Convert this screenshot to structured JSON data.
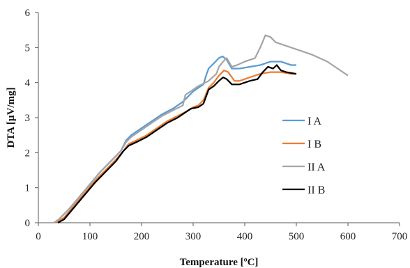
{
  "chart_data": {
    "type": "line",
    "title": "",
    "xlabel": "Temperature [ºC]",
    "ylabel": "DTA [µV/mg]",
    "xlim": [
      0,
      700
    ],
    "ylim": [
      0,
      6
    ],
    "xticks": [
      "0",
      "100",
      "200",
      "300",
      "400",
      "500",
      "600",
      "700"
    ],
    "yticks": [
      "0",
      "1",
      "2",
      "3",
      "4",
      "5",
      "6"
    ],
    "grid": false,
    "legend_position": "right-middle",
    "series": [
      {
        "name": "I A",
        "color": "#5b9bd5",
        "points": [
          [
            30,
            0
          ],
          [
            40,
            0.1
          ],
          [
            60,
            0.4
          ],
          [
            80,
            0.75
          ],
          [
            100,
            1.1
          ],
          [
            120,
            1.45
          ],
          [
            140,
            1.75
          ],
          [
            160,
            2.05
          ],
          [
            170,
            2.35
          ],
          [
            180,
            2.5
          ],
          [
            200,
            2.7
          ],
          [
            220,
            2.9
          ],
          [
            240,
            3.1
          ],
          [
            260,
            3.25
          ],
          [
            280,
            3.45
          ],
          [
            290,
            3.6
          ],
          [
            300,
            3.75
          ],
          [
            310,
            3.85
          ],
          [
            320,
            3.95
          ],
          [
            325,
            4.2
          ],
          [
            330,
            4.4
          ],
          [
            340,
            4.55
          ],
          [
            350,
            4.7
          ],
          [
            357,
            4.75
          ],
          [
            365,
            4.65
          ],
          [
            375,
            4.4
          ],
          [
            390,
            4.4
          ],
          [
            410,
            4.45
          ],
          [
            430,
            4.5
          ],
          [
            450,
            4.6
          ],
          [
            470,
            4.6
          ],
          [
            490,
            4.5
          ],
          [
            500,
            4.5
          ]
        ]
      },
      {
        "name": "I B",
        "color": "#ed7d31",
        "points": [
          [
            35,
            0
          ],
          [
            50,
            0.15
          ],
          [
            70,
            0.5
          ],
          [
            90,
            0.85
          ],
          [
            110,
            1.2
          ],
          [
            130,
            1.5
          ],
          [
            150,
            1.8
          ],
          [
            165,
            2.05
          ],
          [
            175,
            2.25
          ],
          [
            190,
            2.35
          ],
          [
            210,
            2.5
          ],
          [
            230,
            2.7
          ],
          [
            250,
            2.9
          ],
          [
            270,
            3.05
          ],
          [
            290,
            3.2
          ],
          [
            300,
            3.3
          ],
          [
            310,
            3.35
          ],
          [
            320,
            3.5
          ],
          [
            330,
            3.85
          ],
          [
            340,
            4.0
          ],
          [
            350,
            4.2
          ],
          [
            360,
            4.35
          ],
          [
            368,
            4.3
          ],
          [
            380,
            4.05
          ],
          [
            390,
            4.05
          ],
          [
            410,
            4.15
          ],
          [
            430,
            4.25
          ],
          [
            450,
            4.3
          ],
          [
            470,
            4.3
          ],
          [
            490,
            4.25
          ],
          [
            500,
            4.25
          ]
        ]
      },
      {
        "name": "II A",
        "color": "#a5a5a5",
        "points": [
          [
            30,
            0
          ],
          [
            40,
            0.1
          ],
          [
            60,
            0.4
          ],
          [
            80,
            0.75
          ],
          [
            100,
            1.1
          ],
          [
            120,
            1.45
          ],
          [
            140,
            1.75
          ],
          [
            160,
            2.05
          ],
          [
            170,
            2.3
          ],
          [
            180,
            2.45
          ],
          [
            200,
            2.65
          ],
          [
            220,
            2.85
          ],
          [
            240,
            3.05
          ],
          [
            260,
            3.2
          ],
          [
            280,
            3.35
          ],
          [
            285,
            3.65
          ],
          [
            295,
            3.75
          ],
          [
            310,
            3.9
          ],
          [
            330,
            4.05
          ],
          [
            345,
            4.25
          ],
          [
            350,
            4.45
          ],
          [
            358,
            4.6
          ],
          [
            365,
            4.7
          ],
          [
            375,
            4.45
          ],
          [
            385,
            4.5
          ],
          [
            400,
            4.6
          ],
          [
            420,
            4.7
          ],
          [
            430,
            5.0
          ],
          [
            440,
            5.35
          ],
          [
            450,
            5.3
          ],
          [
            460,
            5.15
          ],
          [
            480,
            5.05
          ],
          [
            500,
            4.95
          ],
          [
            530,
            4.8
          ],
          [
            560,
            4.6
          ],
          [
            580,
            4.4
          ],
          [
            600,
            4.2
          ]
        ]
      },
      {
        "name": "II B",
        "color": "#000000",
        "points": [
          [
            38,
            0
          ],
          [
            50,
            0.1
          ],
          [
            70,
            0.45
          ],
          [
            90,
            0.8
          ],
          [
            110,
            1.15
          ],
          [
            130,
            1.45
          ],
          [
            150,
            1.75
          ],
          [
            165,
            2.05
          ],
          [
            175,
            2.2
          ],
          [
            190,
            2.3
          ],
          [
            210,
            2.45
          ],
          [
            230,
            2.65
          ],
          [
            250,
            2.85
          ],
          [
            270,
            3.0
          ],
          [
            285,
            3.15
          ],
          [
            295,
            3.25
          ],
          [
            310,
            3.3
          ],
          [
            320,
            3.4
          ],
          [
            330,
            3.8
          ],
          [
            340,
            3.9
          ],
          [
            350,
            4.05
          ],
          [
            358,
            4.15
          ],
          [
            365,
            4.1
          ],
          [
            375,
            3.95
          ],
          [
            390,
            3.95
          ],
          [
            410,
            4.05
          ],
          [
            425,
            4.1
          ],
          [
            435,
            4.3
          ],
          [
            445,
            4.45
          ],
          [
            455,
            4.4
          ],
          [
            462,
            4.5
          ],
          [
            470,
            4.35
          ],
          [
            480,
            4.3
          ],
          [
            500,
            4.25
          ]
        ]
      }
    ]
  }
}
